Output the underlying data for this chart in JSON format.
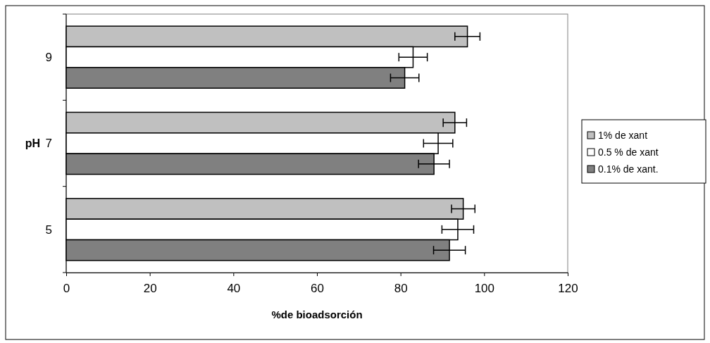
{
  "chart_data": {
    "type": "bar",
    "orientation": "horizontal",
    "categories": [
      "9",
      "7",
      "5"
    ],
    "xlabel": "%de bioadsorción",
    "ylabel": "pH",
    "xlim": [
      0,
      120
    ],
    "xticks": [
      0,
      20,
      40,
      60,
      80,
      100,
      120
    ],
    "legend": "right",
    "grid": false,
    "series": [
      {
        "name": "1% de xant",
        "color": "#c0c0c0",
        "values": [
          96,
          93,
          95
        ],
        "errors": [
          3,
          2.8,
          2.8
        ]
      },
      {
        "name": "0.5 % de xant",
        "color": "#ffffff",
        "values": [
          83,
          89,
          93.7
        ],
        "errors": [
          3.4,
          3.5,
          3.8
        ]
      },
      {
        "name": "0.1% de xant.",
        "color": "#808080",
        "values": [
          81,
          88,
          91.7
        ],
        "errors": [
          3.4,
          3.7,
          3.8
        ]
      }
    ]
  }
}
